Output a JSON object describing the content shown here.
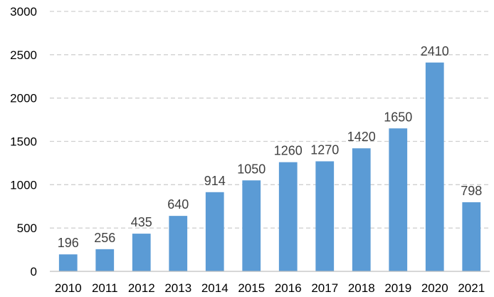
{
  "chart_data": {
    "type": "bar",
    "title": "",
    "xlabel": "",
    "ylabel": "",
    "categories": [
      "2010",
      "2011",
      "2012",
      "2013",
      "2014",
      "2015",
      "2016",
      "2017",
      "2018",
      "2019",
      "2020",
      "2021"
    ],
    "values": [
      196,
      256,
      435,
      640,
      914,
      1050,
      1260,
      1270,
      1420,
      1650,
      2410,
      798
    ],
    "data_labels": [
      "196",
      "256",
      "435",
      "640",
      "914",
      "1050",
      "1260",
      "1270",
      "1420",
      "1650",
      "2410",
      "798"
    ],
    "ylim": [
      0,
      3000
    ],
    "yticks": [
      0,
      500,
      1000,
      1500,
      2000,
      2500,
      3000
    ],
    "ytick_labels": [
      "0",
      "500",
      "1000",
      "1500",
      "2000",
      "2500",
      "3000"
    ],
    "grid": true,
    "bar_color": "#5b9bd5",
    "legend": "none"
  }
}
